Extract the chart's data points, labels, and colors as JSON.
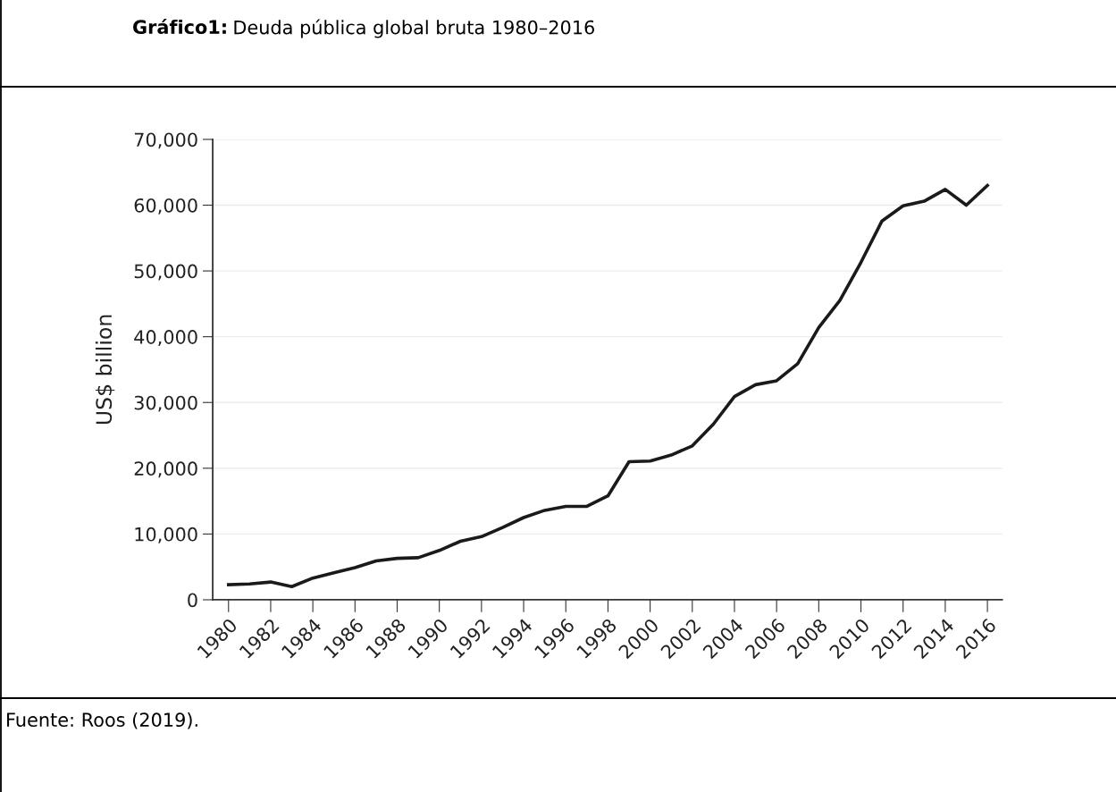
{
  "chart_data": {
    "type": "line",
    "title": "Gráfico1: Deuda pública global bruta 1980–2016",
    "ylabel": "US$ billion",
    "annotations": [
      "Fuente: Roos (2019)."
    ],
    "x": [
      1980,
      1981,
      1982,
      1983,
      1984,
      1985,
      1986,
      1987,
      1988,
      1989,
      1990,
      1991,
      1992,
      1993,
      1994,
      1995,
      1996,
      1997,
      1998,
      1999,
      2000,
      2001,
      2002,
      2003,
      2004,
      2005,
      2006,
      2007,
      2008,
      2009,
      2010,
      2011,
      2012,
      2013,
      2014,
      2015,
      2016
    ],
    "series": [
      {
        "color": "#1a1a1a",
        "values": [
          2300,
          2400,
          2700,
          2000,
          3300,
          4100,
          4900,
          5900,
          6300,
          6400,
          7500,
          8900,
          9600,
          11000,
          12500,
          13600,
          14200,
          14200,
          15800,
          21000,
          21100,
          22000,
          23400,
          26700,
          30900,
          32700,
          33300,
          35900,
          41400,
          45500,
          51300,
          57600,
          59900,
          60600,
          62400,
          60000,
          63000
        ]
      }
    ],
    "xlim": [
      1979.25,
      2016.7
    ],
    "xticks": [
      1980,
      1982,
      1984,
      1986,
      1988,
      1990,
      1992,
      1994,
      1996,
      1998,
      2000,
      2002,
      2004,
      2006,
      2008,
      2010,
      2012,
      2014,
      2016
    ],
    "ylim": [
      0,
      70000
    ],
    "yticks": [
      {
        "value": 0,
        "label": "0"
      },
      {
        "value": 10000,
        "label": "10,000"
      },
      {
        "value": 20000,
        "label": "20,000"
      },
      {
        "value": 30000,
        "label": "30,000"
      },
      {
        "value": 40000,
        "label": "40,000"
      },
      {
        "value": 50000,
        "label": "50,000"
      },
      {
        "value": 60000,
        "label": "60,000"
      },
      {
        "value": 70000,
        "label": "70,000"
      }
    ],
    "grid": "y",
    "marker": "none",
    "line_style": "solid"
  }
}
